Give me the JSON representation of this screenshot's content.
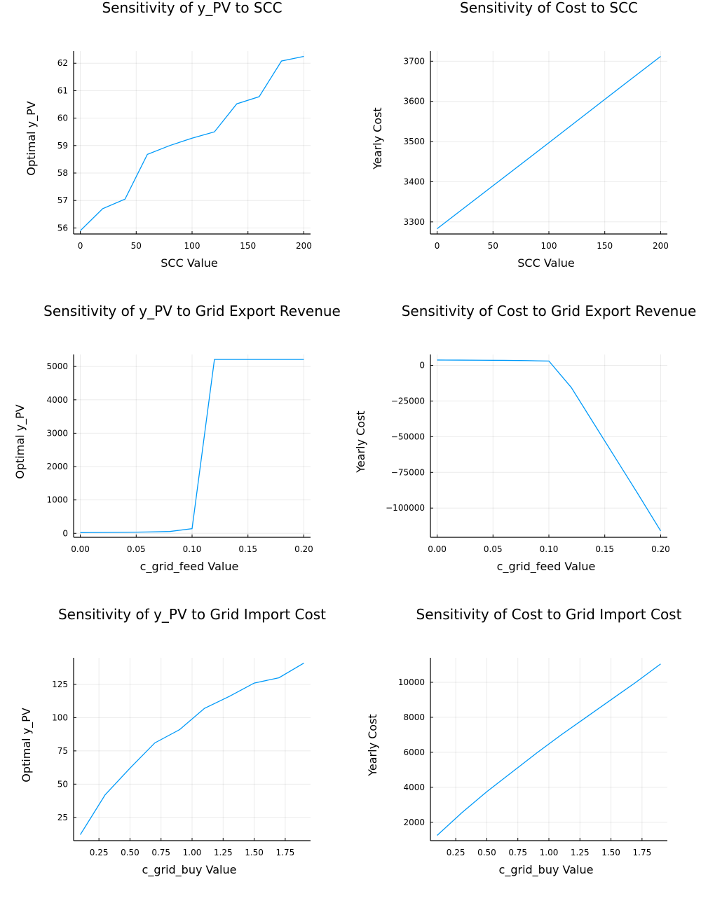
{
  "colors": {
    "series": "#009AF9",
    "axis": "#000000",
    "background": "#FFFFFF"
  },
  "chart_data": [
    {
      "type": "line",
      "title": "Sensitivity of y_PV to SCC",
      "xlabel": "SCC Value",
      "ylabel": "Optimal y_PV",
      "xlim": [
        -6,
        206
      ],
      "ylim": [
        55.78,
        62.44
      ],
      "xticks": [
        0,
        50,
        100,
        150,
        200
      ],
      "xtick_labels": [
        "0",
        "50",
        "100",
        "150",
        "200"
      ],
      "yticks": [
        56,
        57,
        58,
        59,
        60,
        61,
        62
      ],
      "ytick_labels": [
        "56",
        "57",
        "58",
        "59",
        "60",
        "61",
        "62"
      ],
      "grid": true,
      "legend": "none",
      "series": [
        {
          "x": [
            0,
            20,
            40,
            60,
            80,
            100,
            120,
            140,
            160,
            180,
            200
          ],
          "y": [
            55.9,
            56.7,
            57.05,
            58.68,
            59.0,
            59.27,
            59.5,
            60.52,
            60.78,
            62.08,
            62.25
          ]
        }
      ]
    },
    {
      "type": "line",
      "title": "Sensitivity of Cost to SCC",
      "xlabel": "SCC Value",
      "ylabel": "Yearly Cost",
      "xlim": [
        -6,
        206
      ],
      "ylim": [
        3270,
        3725
      ],
      "xticks": [
        0,
        50,
        100,
        150,
        200
      ],
      "xtick_labels": [
        "0",
        "50",
        "100",
        "150",
        "200"
      ],
      "yticks": [
        3300,
        3400,
        3500,
        3600,
        3700
      ],
      "ytick_labels": [
        "3300",
        "3400",
        "3500",
        "3600",
        "3700"
      ],
      "grid": true,
      "legend": "none",
      "series": [
        {
          "x": [
            0,
            50,
            100,
            150,
            200
          ],
          "y": [
            3283,
            3390,
            3497,
            3605,
            3712
          ]
        }
      ]
    },
    {
      "type": "line",
      "title": "Sensitivity of y_PV to Grid Export Revenue",
      "xlabel": "c_grid_feed Value",
      "ylabel": "Optimal y_PV",
      "xlim": [
        -0.006,
        0.206
      ],
      "ylim": [
        -120,
        5360
      ],
      "xticks": [
        0.0,
        0.05,
        0.1,
        0.15,
        0.2
      ],
      "xtick_labels": [
        "0.00",
        "0.05",
        "0.10",
        "0.15",
        "0.20"
      ],
      "yticks": [
        0,
        1000,
        2000,
        3000,
        4000,
        5000
      ],
      "ytick_labels": [
        "0",
        "1000",
        "2000",
        "3000",
        "4000",
        "5000"
      ],
      "grid": true,
      "legend": "none",
      "series": [
        {
          "x": [
            0.0,
            0.02,
            0.04,
            0.06,
            0.08,
            0.1,
            0.12,
            0.14,
            0.16,
            0.18,
            0.2
          ],
          "y": [
            20,
            25,
            30,
            40,
            55,
            140,
            5210,
            5210,
            5210,
            5210,
            5210
          ]
        }
      ]
    },
    {
      "type": "line",
      "title": "Sensitivity of Cost to Grid Export Revenue",
      "xlabel": "c_grid_feed Value",
      "ylabel": "Yearly Cost",
      "xlim": [
        -0.006,
        0.206
      ],
      "ylim": [
        -120500,
        7600
      ],
      "xticks": [
        0.0,
        0.05,
        0.1,
        0.15,
        0.2
      ],
      "xtick_labels": [
        "0.00",
        "0.05",
        "0.10",
        "0.15",
        "0.20"
      ],
      "yticks": [
        -100000,
        -75000,
        -50000,
        -25000,
        0
      ],
      "ytick_labels": [
        "−100000",
        "−75000",
        "−50000",
        "−25000",
        "0"
      ],
      "grid": true,
      "legend": "none",
      "series": [
        {
          "x": [
            0.0,
            0.02,
            0.04,
            0.06,
            0.08,
            0.1,
            0.12,
            0.14,
            0.16,
            0.18,
            0.2
          ],
          "y": [
            3700,
            3650,
            3550,
            3450,
            3300,
            3000,
            -15500,
            -40500,
            -65500,
            -90500,
            -116000
          ]
        }
      ]
    },
    {
      "type": "line",
      "title": "Sensitivity of y_PV to Grid Import Cost",
      "xlabel": "c_grid_buy Value",
      "ylabel": "Optimal y_PV",
      "xlim": [
        0.046,
        1.954
      ],
      "ylim": [
        7.5,
        145
      ],
      "xticks": [
        0.25,
        0.5,
        0.75,
        1.0,
        1.25,
        1.5,
        1.75
      ],
      "xtick_labels": [
        "0.25",
        "0.50",
        "0.75",
        "1.00",
        "1.25",
        "1.50",
        "1.75"
      ],
      "yticks": [
        25,
        50,
        75,
        100,
        125
      ],
      "ytick_labels": [
        "25",
        "50",
        "75",
        "100",
        "125"
      ],
      "grid": true,
      "legend": "none",
      "series": [
        {
          "x": [
            0.1,
            0.3,
            0.5,
            0.7,
            0.9,
            1.1,
            1.3,
            1.5,
            1.7,
            1.9
          ],
          "y": [
            12,
            42,
            62,
            81,
            91,
            107,
            116,
            126,
            130,
            141
          ]
        }
      ]
    },
    {
      "type": "line",
      "title": "Sensitivity of Cost to Grid Import Cost",
      "xlabel": "c_grid_buy Value",
      "ylabel": "Yearly Cost",
      "xlim": [
        0.046,
        1.954
      ],
      "ylim": [
        950,
        11400
      ],
      "xticks": [
        0.25,
        0.5,
        0.75,
        1.0,
        1.25,
        1.5,
        1.75
      ],
      "xtick_labels": [
        "0.25",
        "0.50",
        "0.75",
        "1.00",
        "1.25",
        "1.50",
        "1.75"
      ],
      "yticks": [
        2000,
        4000,
        6000,
        8000,
        10000
      ],
      "ytick_labels": [
        "2000",
        "4000",
        "6000",
        "8000",
        "10000"
      ],
      "grid": true,
      "legend": "none",
      "series": [
        {
          "x": [
            0.1,
            0.3,
            0.5,
            0.7,
            0.9,
            1.1,
            1.3,
            1.5,
            1.7,
            1.9
          ],
          "y": [
            1250,
            2550,
            3750,
            4850,
            5950,
            7000,
            8000,
            9000,
            10000,
            11050
          ]
        }
      ]
    }
  ]
}
